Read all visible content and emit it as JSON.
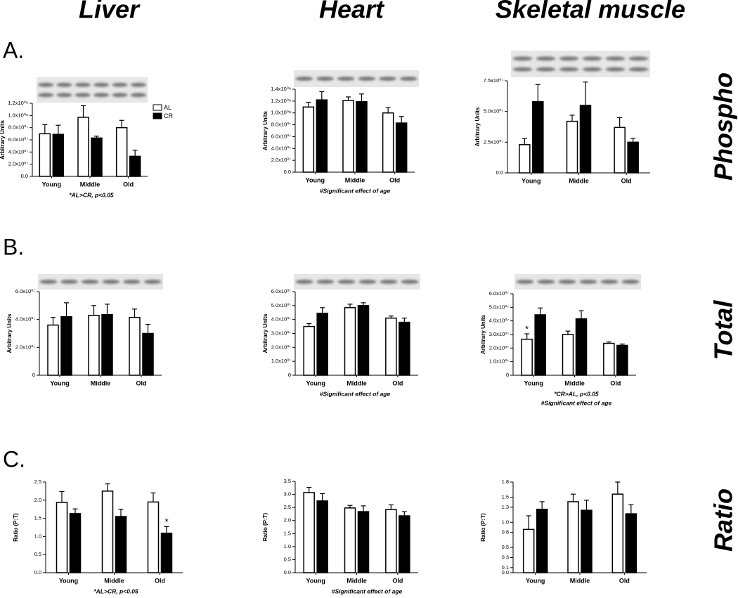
{
  "headers": [
    "Liver",
    "Heart",
    "Skeletal muscle"
  ],
  "row_labels": [
    "A.",
    "B.",
    "C."
  ],
  "side_labels": [
    "Phospho",
    "Total",
    "Ratio"
  ],
  "series": [
    {
      "name": "AL",
      "color": "#ffffff"
    },
    {
      "name": "CR",
      "color": "#000000"
    }
  ],
  "chart_data": [
    {
      "type": "bar",
      "y_label": "Arbitrary Units",
      "categories": [
        "Young",
        "Middle",
        "Old"
      ],
      "legend": "right",
      "series": [
        {
          "values": [
            70000000,
            97000000,
            80000000
          ],
          "errors": [
            15000000,
            19000000,
            12000000
          ]
        },
        {
          "values": [
            69000000,
            63000000,
            33000000
          ],
          "errors": [
            15000000,
            3000000,
            10000000
          ]
        }
      ],
      "ylim": [
        0,
        120000000
      ],
      "yticks": [
        {
          "value": 0,
          "label": "0.0"
        },
        {
          "value": 20000000,
          "label": "2.0x10⁰⁷"
        },
        {
          "value": 40000000,
          "label": "4.0x10⁰⁷"
        },
        {
          "value": 60000000,
          "label": "6.0x10⁰⁷"
        },
        {
          "value": 80000000,
          "label": "8.0x10⁰⁷"
        },
        {
          "value": 100000000,
          "label": "1.0x10⁰⁸"
        },
        {
          "value": 120000000,
          "label": "1.2x10⁰⁸"
        }
      ],
      "notes": [
        "*AL>CR, p<0.05"
      ]
    },
    {
      "type": "bar",
      "y_label": "Arbitrary Units",
      "categories": [
        "Young",
        "Middle",
        "Old"
      ],
      "series": [
        {
          "values": [
            110000000,
            121000000,
            100000000
          ],
          "errors": [
            8000000,
            6000000,
            9000000
          ]
        },
        {
          "values": [
            122000000,
            119000000,
            83000000
          ],
          "errors": [
            14000000,
            13000000,
            11000000
          ]
        }
      ],
      "ylim": [
        0,
        140000000
      ],
      "yticks": [
        {
          "value": 0,
          "label": "0.0"
        },
        {
          "value": 20000000,
          "label": "2.0x10⁰⁷"
        },
        {
          "value": 40000000,
          "label": "4.0x10⁰⁷"
        },
        {
          "value": 60000000,
          "label": "6.0x10⁰⁷"
        },
        {
          "value": 80000000,
          "label": "8.0x10⁰⁷"
        },
        {
          "value": 100000000,
          "label": "1.0x10⁰⁸"
        },
        {
          "value": 120000000,
          "label": "1.2x10⁰⁸"
        },
        {
          "value": 140000000,
          "label": "1.4x10⁰⁸"
        }
      ],
      "notes": [
        "#Significant effect of age"
      ]
    },
    {
      "type": "bar",
      "y_label": "Arbitrary Units",
      "categories": [
        "Young",
        "Middle",
        "Old"
      ],
      "series": [
        {
          "values": [
            23000000,
            42000000,
            37000000
          ],
          "errors": [
            5000000,
            5000000,
            8000000
          ]
        },
        {
          "values": [
            58000000,
            55000000,
            25000000
          ],
          "errors": [
            14000000,
            19000000,
            3000000
          ]
        }
      ],
      "ylim": [
        0,
        75000000
      ],
      "yticks": [
        {
          "value": 0,
          "label": "0.0"
        },
        {
          "value": 25000000,
          "label": "2.5x10⁰⁷"
        },
        {
          "value": 50000000,
          "label": "5.0x10⁰⁷"
        },
        {
          "value": 75000000,
          "label": "7.5x10⁰⁷"
        }
      ]
    },
    {
      "type": "bar",
      "y_label": "Arbitrary Units",
      "categories": [
        "Young",
        "Middle",
        "Old"
      ],
      "series": [
        {
          "values": [
            36000000,
            43000000,
            41500000
          ],
          "errors": [
            5500000,
            7000000,
            6000000
          ]
        },
        {
          "values": [
            42000000,
            43500000,
            30000000
          ],
          "errors": [
            10000000,
            7500000,
            6500000
          ]
        }
      ],
      "ylim": [
        0,
        60000000
      ],
      "yticks": [
        0,
        {
          "value": 20000000,
          "label": "2.0x10⁰⁷"
        },
        {
          "value": 40000000,
          "label": "4.0x10⁰⁷"
        },
        {
          "value": 60000000,
          "label": "6.0x10⁰⁷"
        }
      ]
    },
    {
      "type": "bar",
      "y_label": "Arbitrary Units",
      "categories": [
        "Young",
        "Middle",
        "Old"
      ],
      "series": [
        {
          "values": [
            35000000,
            48500000,
            41000000
          ],
          "errors": [
            2000000,
            2500000,
            1500000
          ]
        },
        {
          "values": [
            44500000,
            50000000,
            38000000
          ],
          "errors": [
            4000000,
            2000000,
            3000000
          ]
        }
      ],
      "ylim": [
        0,
        60000000
      ],
      "yticks": [
        0,
        {
          "value": 10000000,
          "label": "1.0x10⁰⁷"
        },
        {
          "value": 20000000,
          "label": "2.0x10⁰⁷"
        },
        {
          "value": 30000000,
          "label": "3.0x10⁰⁷"
        },
        {
          "value": 40000000,
          "label": "4.0x10⁰⁷"
        },
        {
          "value": 50000000,
          "label": "5.0x10⁰⁷"
        },
        {
          "value": 60000000,
          "label": "6.0x10⁰⁷"
        }
      ],
      "notes": [
        "#Significant effect of age"
      ]
    },
    {
      "type": "bar",
      "y_label": "Arbitrary Units",
      "categories": [
        "Young",
        "Middle",
        "Old"
      ],
      "series": [
        {
          "values": [
            26500000,
            30000000,
            23500000
          ],
          "errors": [
            4000000,
            2500000,
            1000000
          ],
          "annotations": [
            "*",
            null,
            null
          ]
        },
        {
          "values": [
            44500000,
            41500000,
            22000000
          ],
          "errors": [
            5000000,
            6000000,
            1000000
          ]
        }
      ],
      "ylim": [
        0,
        60000000
      ],
      "yticks": [
        0,
        {
          "value": 10000000,
          "label": "1.0x10⁰⁷"
        },
        {
          "value": 20000000,
          "label": "2.0x10⁰⁷"
        },
        {
          "value": 30000000,
          "label": "3.0x10⁰⁷"
        },
        {
          "value": 40000000,
          "label": "4.0x10⁰⁷"
        },
        {
          "value": 50000000,
          "label": "5.0x10⁰⁷"
        },
        {
          "value": 60000000,
          "label": "6.0x10⁰⁷"
        }
      ],
      "notes": [
        "*CR>AL, p<0.05",
        "#Significant effect of age"
      ]
    },
    {
      "type": "bar",
      "y_label": "Ratio (P:T)",
      "categories": [
        "Young",
        "Middle",
        "Old"
      ],
      "series": [
        {
          "values": [
            1.94,
            2.25,
            1.95
          ],
          "errors": [
            0.3,
            0.2,
            0.25
          ]
        },
        {
          "values": [
            1.63,
            1.55,
            1.09
          ],
          "errors": [
            0.13,
            0.2,
            0.18
          ],
          "annotations": [
            null,
            null,
            "*"
          ]
        }
      ],
      "ylim": [
        0,
        2.5
      ],
      "yticks": [
        {
          "value": 0,
          "label": "0.0"
        },
        0.5,
        {
          "value": 1,
          "label": "1.0"
        },
        1.5,
        {
          "value": 2,
          "label": "2.0"
        },
        2.5
      ],
      "notes": [
        "*AL>CR, p<0.05"
      ]
    },
    {
      "type": "bar",
      "y_label": "Ratio (P:T)",
      "categories": [
        "Young",
        "Middle",
        "Old"
      ],
      "series": [
        {
          "values": [
            3.07,
            2.48,
            2.42
          ],
          "errors": [
            0.2,
            0.1,
            0.18
          ]
        },
        {
          "values": [
            2.75,
            2.34,
            2.18
          ],
          "errors": [
            0.28,
            0.22,
            0.16
          ]
        }
      ],
      "ylim": [
        0,
        3.5
      ],
      "yticks": [
        {
          "value": 0,
          "label": "0.0"
        },
        0.5,
        {
          "value": 1,
          "label": "1.0"
        },
        1.5,
        {
          "value": 2,
          "label": "2.0"
        },
        2.5,
        {
          "value": 3,
          "label": "3.0"
        },
        3.5
      ],
      "notes": [
        "#Significant effect of age"
      ]
    },
    {
      "type": "bar",
      "y_label": "Ratio (P:T)",
      "categories": [
        "Young",
        "Middle",
        "Old"
      ],
      "series": [
        {
          "values": [
            0.86,
            1.41,
            1.56
          ],
          "errors": [
            0.27,
            0.15,
            0.24
          ]
        },
        {
          "values": [
            1.26,
            1.24,
            1.17
          ],
          "errors": [
            0.15,
            0.2,
            0.18
          ]
        }
      ],
      "ylim": [
        0,
        1.8
      ],
      "yticks": [
        {
          "value": 0,
          "label": "0.0"
        },
        0.1,
        0.3,
        0.5,
        0.8,
        {
          "value": 1,
          "label": "1.0"
        },
        1.3,
        1.5,
        1.8
      ]
    }
  ]
}
